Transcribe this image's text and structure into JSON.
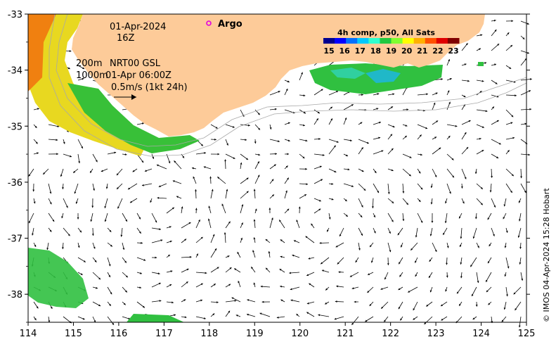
{
  "map": {
    "date": "01-Apr-2024",
    "time": "16Z",
    "legend_depth_200": "200m",
    "legend_depth_1000": "1000m",
    "altimetry_source": "NRT00 GSL",
    "altimetry_time": "01-Apr 06:00Z",
    "vector_scale": "0.5m/s (1kt 24h)",
    "argo_label": "Argo",
    "credit": "© IMOS 04-Apr-2024 15:28 Hobart"
  },
  "colorbar": {
    "title": "4h comp, p50, All Sats",
    "ticks": [
      "15",
      "16",
      "17",
      "18",
      "19",
      "20",
      "21",
      "22",
      "23"
    ],
    "colors": [
      "#00008f",
      "#0000ff",
      "#0070ff",
      "#00c8ff",
      "#30ffcf",
      "#20c840",
      "#80ff30",
      "#ffff00",
      "#ffb000",
      "#ff5000",
      "#e00000",
      "#800000"
    ]
  },
  "axes": {
    "x_ticks": [
      "114",
      "115",
      "116",
      "117",
      "118",
      "119",
      "120",
      "121",
      "122",
      "123",
      "124",
      "125"
    ],
    "y_ticks": [
      "-33",
      "-34",
      "-35",
      "-36",
      "-37",
      "-38"
    ],
    "xlim": [
      114,
      125
    ],
    "ylim": [
      -38.5,
      -33
    ]
  },
  "colors": {
    "land": "#fdcb99",
    "sst_warm": "#f0e020",
    "sst_mid": "#3cc83c",
    "sst_cool": "#20c0a0",
    "argo": "#e000e0"
  }
}
